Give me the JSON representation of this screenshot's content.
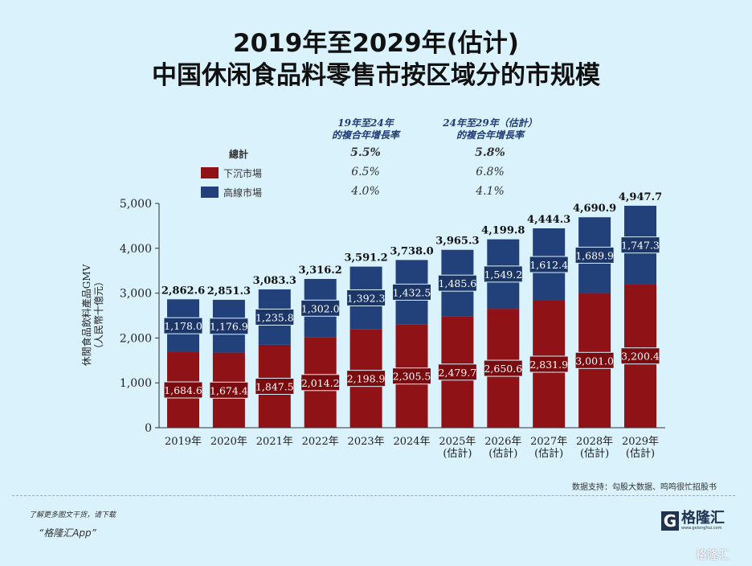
{
  "chart_data": {
    "type": "bar",
    "stacked": true,
    "title": "2019年至2029年(估计)",
    "subtitle": "中国休闲食品料零售市按区域分的市规模",
    "ylabel": "休閒食品飲料產品GMV\n（人民幣十億元）",
    "ylim": [
      0,
      5000
    ],
    "yticks": [
      "0",
      "1,000",
      "2,000",
      "3,000",
      "4,000",
      "5,000"
    ],
    "categories": [
      "2019年",
      "2020年",
      "2021年",
      "2022年",
      "2023年",
      "2024年",
      "2025年\n(估計)",
      "2026年\n(估計)",
      "2027年\n(估計)",
      "2028年\n(估計)",
      "2029年\n(估計)"
    ],
    "series": [
      {
        "name": "下沉市場",
        "color": "#8f1217",
        "values": [
          1684.6,
          1674.4,
          1847.5,
          2014.2,
          2198.9,
          2305.5,
          2479.7,
          2650.6,
          2831.9,
          3001.0,
          3200.4
        ],
        "labels": [
          "1,684.6",
          "1,674.4",
          "1,847.5",
          "2,014.2",
          "2,198.9",
          "2,305.5",
          "2,479.7",
          "2,650.6",
          "2,831.9",
          "3,001.0",
          "3,200.4"
        ]
      },
      {
        "name": "高線市場",
        "color": "#22407a",
        "values": [
          1178.0,
          1176.9,
          1235.8,
          1302.0,
          1392.3,
          1432.5,
          1485.6,
          1549.2,
          1612.4,
          1689.9,
          1747.3
        ],
        "labels": [
          "1,178.0",
          "1,176.9",
          "1,235.8",
          "1,302.0",
          "1,392.3",
          "1,432.5",
          "1,485.6",
          "1,549.2",
          "1,612.4",
          "1,689.9",
          "1,747.3"
        ]
      }
    ],
    "totals": [
      "2,862.6",
      "2,851.3",
      "3,083.3",
      "3,316.2",
      "3,591.2",
      "3,738.0",
      "3,965.3",
      "4,199.8",
      "4,444.3",
      "4,690.9",
      "4,947.7"
    ],
    "cagr_table": {
      "headers": [
        "19年至24年\n的複合年增長率",
        "24年至29年（估計）\n的複合年增長率"
      ],
      "rows": [
        {
          "label": "總計",
          "values": [
            "5.5%",
            "5.8%"
          ]
        },
        {
          "label": "下沉市場",
          "values": [
            "6.5%",
            "6.8%"
          ]
        },
        {
          "label": "高線市場",
          "values": [
            "4.0%",
            "4.1%"
          ]
        }
      ]
    },
    "grid": false,
    "legend": "top"
  },
  "footer": {
    "source": "数据支持：勾股大数据、鸣鸣很忙招股书",
    "promo1": "了解更多图文干货，请下载",
    "promo2": "“格隆汇App”",
    "logo": "格隆汇",
    "logo_url": "www.gelonghui.com",
    "watermark": "格隆汇"
  }
}
